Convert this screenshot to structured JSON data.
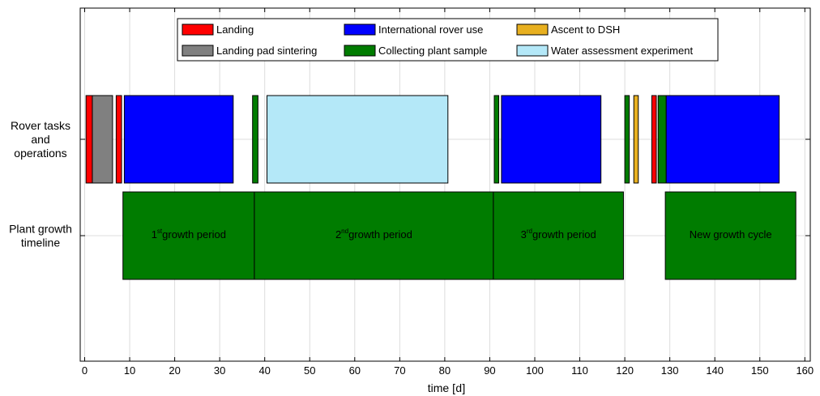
{
  "chart_data": {
    "type": "timeline",
    "xlabel": "time",
    "xlabel_unit": "d",
    "xlim": [
      -1,
      162
    ],
    "xticks": [
      0,
      10,
      20,
      30,
      40,
      50,
      60,
      70,
      80,
      90,
      100,
      110,
      120,
      130,
      140,
      150,
      160
    ],
    "grid": true,
    "legend_position": "top-center",
    "rows": [
      {
        "id": "rover",
        "label_lines": [
          "Rover tasks",
          "and",
          "operations"
        ]
      },
      {
        "id": "plant",
        "label_lines": [
          "Plant growth",
          "timeline"
        ]
      }
    ],
    "categories": [
      {
        "id": "landing",
        "name": "Landing",
        "color": "#ff0000"
      },
      {
        "id": "sintering",
        "name": "Landing pad sintering",
        "color": "#808080"
      },
      {
        "id": "rover_use",
        "name": "International rover use",
        "color": "#0000ff"
      },
      {
        "id": "sample",
        "name": "Collecting plant sample",
        "color": "#007c00"
      },
      {
        "id": "ascent",
        "name": "Ascent to DSH",
        "color": "#e8b020"
      },
      {
        "id": "water",
        "name": "Water assessment experiment",
        "color": "#b4e8f8"
      }
    ],
    "rover_tasks": [
      {
        "category": "landing",
        "start": 0.3,
        "end": 1.7
      },
      {
        "category": "sintering",
        "start": 1.7,
        "end": 6.2
      },
      {
        "category": "landing",
        "start": 7.0,
        "end": 8.2
      },
      {
        "category": "rover_use",
        "start": 8.8,
        "end": 33.0
      },
      {
        "category": "sample",
        "start": 37.3,
        "end": 38.5
      },
      {
        "category": "water",
        "start": 40.5,
        "end": 80.7
      },
      {
        "category": "sample",
        "start": 91.0,
        "end": 92.0
      },
      {
        "category": "rover_use",
        "start": 92.6,
        "end": 114.7
      },
      {
        "category": "sample",
        "start": 120.0,
        "end": 121.0
      },
      {
        "category": "ascent",
        "start": 122.0,
        "end": 123.0
      },
      {
        "category": "landing",
        "start": 126.0,
        "end": 127.0
      },
      {
        "category": "sample",
        "start": 127.4,
        "end": 129.2
      },
      {
        "category": "rover_use",
        "start": 129.2,
        "end": 154.3
      }
    ],
    "growth_periods": [
      {
        "num": "1",
        "sup": "st",
        "text": "growth period",
        "start": 8.5,
        "end": 37.7
      },
      {
        "num": "2",
        "sup": "nd",
        "text": "growth period",
        "start": 37.7,
        "end": 90.8
      },
      {
        "num": "3",
        "sup": "rd",
        "text": "growth period",
        "start": 90.8,
        "end": 119.7
      },
      {
        "num": "",
        "sup": "",
        "text": "New growth cycle",
        "start": 129.0,
        "end": 158.0
      }
    ],
    "growth_color": "#007c00"
  }
}
